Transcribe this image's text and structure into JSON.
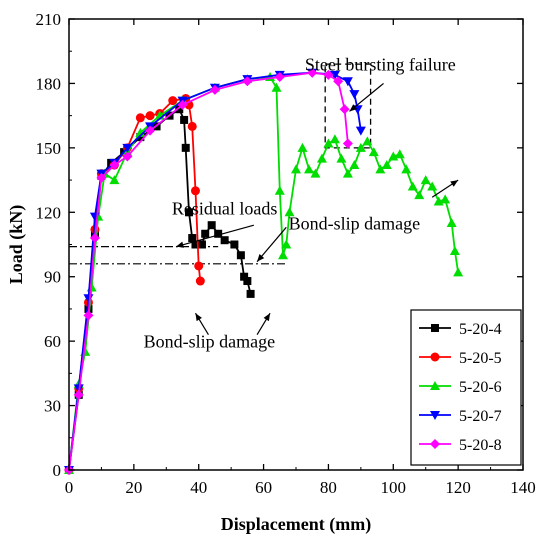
{
  "chart_data": {
    "type": "line",
    "xlabel": "Displacement (mm)",
    "ylabel": "Load (kN)",
    "xlim": [
      0,
      140
    ],
    "ylim": [
      0,
      210
    ],
    "xticks": [
      0,
      20,
      40,
      60,
      80,
      100,
      120,
      140
    ],
    "yticks": [
      0,
      30,
      60,
      90,
      120,
      150,
      180,
      210
    ],
    "grid": false,
    "legend_position": "bottom-right",
    "series": [
      {
        "name": "5-20-4",
        "color": "#000000",
        "marker": "square",
        "points": [
          [
            0,
            0
          ],
          [
            3,
            35
          ],
          [
            6,
            75
          ],
          [
            8,
            110
          ],
          [
            10,
            137
          ],
          [
            13,
            143
          ],
          [
            17,
            148
          ],
          [
            22,
            155
          ],
          [
            27,
            160
          ],
          [
            31,
            165
          ],
          [
            34,
            168
          ],
          [
            35.5,
            163
          ],
          [
            36,
            150
          ],
          [
            37,
            120
          ],
          [
            38,
            108
          ],
          [
            39,
            105
          ],
          [
            41,
            105
          ],
          [
            42,
            110
          ],
          [
            44,
            114
          ],
          [
            46,
            110
          ],
          [
            48,
            107
          ],
          [
            51,
            105
          ],
          [
            53,
            100
          ],
          [
            54,
            90
          ],
          [
            55,
            88
          ],
          [
            56,
            82
          ]
        ]
      },
      {
        "name": "5-20-5",
        "color": "#ff0000",
        "marker": "circle",
        "points": [
          [
            0,
            0
          ],
          [
            3,
            38
          ],
          [
            6,
            78
          ],
          [
            8,
            112
          ],
          [
            10,
            138
          ],
          [
            14,
            142
          ],
          [
            18,
            150
          ],
          [
            22,
            164
          ],
          [
            25,
            165
          ],
          [
            28,
            166
          ],
          [
            32,
            172
          ],
          [
            36,
            173
          ],
          [
            37,
            170
          ],
          [
            38,
            160
          ],
          [
            39,
            130
          ],
          [
            40,
            95
          ],
          [
            40.5,
            88
          ]
        ]
      },
      {
        "name": "5-20-6",
        "color": "#00dd00",
        "marker": "triangle-up",
        "points": [
          [
            0,
            0
          ],
          [
            3,
            40
          ],
          [
            5,
            55
          ],
          [
            7,
            85
          ],
          [
            9,
            118
          ],
          [
            11,
            138
          ],
          [
            14,
            135
          ],
          [
            18,
            148
          ],
          [
            22,
            157
          ],
          [
            28,
            165
          ],
          [
            35,
            172
          ],
          [
            45,
            178
          ],
          [
            55,
            182
          ],
          [
            62,
            183
          ],
          [
            64,
            178
          ],
          [
            65,
            130
          ],
          [
            66,
            100
          ],
          [
            67,
            105
          ],
          [
            68,
            120
          ],
          [
            70,
            140
          ],
          [
            72,
            150
          ],
          [
            74,
            140
          ],
          [
            76,
            138
          ],
          [
            78,
            145
          ],
          [
            80,
            152
          ],
          [
            82,
            154
          ],
          [
            84,
            145
          ],
          [
            86,
            138
          ],
          [
            88,
            142
          ],
          [
            90,
            150
          ],
          [
            92,
            153
          ],
          [
            94,
            148
          ],
          [
            96,
            140
          ],
          [
            98,
            142
          ],
          [
            100,
            146
          ],
          [
            102,
            147
          ],
          [
            104,
            140
          ],
          [
            106,
            132
          ],
          [
            108,
            128
          ],
          [
            110,
            135
          ],
          [
            112,
            132
          ],
          [
            114,
            125
          ],
          [
            116,
            126
          ],
          [
            118,
            115
          ],
          [
            119,
            102
          ],
          [
            120,
            92
          ]
        ]
      },
      {
        "name": "5-20-7",
        "color": "#0000ff",
        "marker": "triangle-down",
        "points": [
          [
            0,
            0
          ],
          [
            3,
            38
          ],
          [
            6,
            80
          ],
          [
            8,
            118
          ],
          [
            10,
            138
          ],
          [
            14,
            143
          ],
          [
            18,
            150
          ],
          [
            25,
            160
          ],
          [
            35,
            172
          ],
          [
            45,
            178
          ],
          [
            55,
            182
          ],
          [
            65,
            184
          ],
          [
            75,
            185
          ],
          [
            82,
            184
          ],
          [
            86,
            181
          ],
          [
            88,
            175
          ],
          [
            89,
            168
          ],
          [
            90,
            158
          ]
        ]
      },
      {
        "name": "5-20-8",
        "color": "#ff00ff",
        "marker": "diamond",
        "points": [
          [
            0,
            0
          ],
          [
            3,
            35
          ],
          [
            6,
            72
          ],
          [
            8,
            108
          ],
          [
            10,
            136
          ],
          [
            14,
            142
          ],
          [
            18,
            146
          ],
          [
            25,
            158
          ],
          [
            35,
            170
          ],
          [
            45,
            177
          ],
          [
            55,
            181
          ],
          [
            65,
            183
          ],
          [
            75,
            185
          ],
          [
            80,
            184
          ],
          [
            83,
            181
          ],
          [
            85,
            168
          ],
          [
            86,
            152
          ]
        ]
      }
    ],
    "annotations": [
      {
        "text": "Steel bursting failure",
        "x": 96,
        "y": 186
      },
      {
        "text": "Residual loads",
        "x": 48,
        "y": 119
      },
      {
        "text": "Bond-slip damage",
        "x": 88,
        "y": 112
      },
      {
        "text": "Bond-slip damage",
        "x": 23,
        "y": 57
      }
    ]
  }
}
